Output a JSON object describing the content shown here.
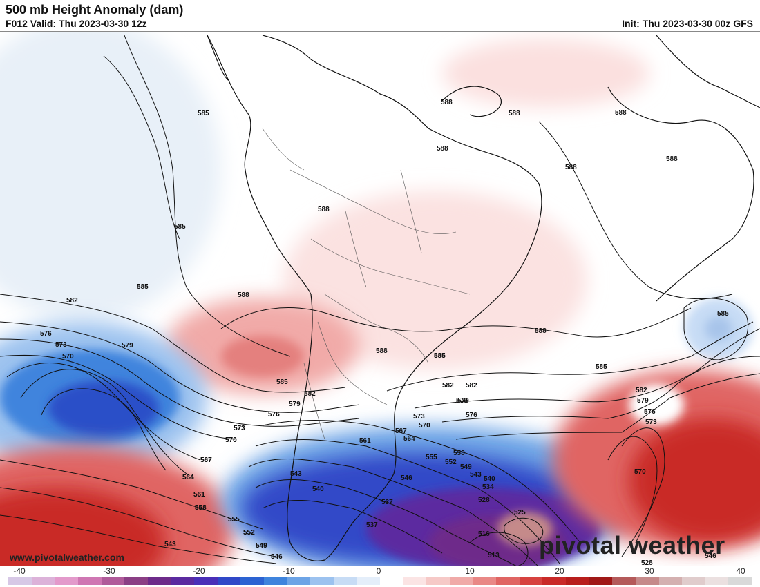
{
  "header": {
    "title": "500 mb Height Anomaly (dam)",
    "valid": "F012 Valid: Thu 2023-03-30 12z",
    "init": "Init: Thu 2023-03-30 00z GFS"
  },
  "footer": {
    "website": "www.pivotalweather.com",
    "brand": "pivotal weather"
  },
  "colorbar": {
    "ticks": [
      "-40",
      "-30",
      "-20",
      "-10",
      "0",
      "10",
      "20",
      "30",
      "40"
    ],
    "colors": [
      "#d7c8e6",
      "#dcb2d9",
      "#e39acb",
      "#cf77b3",
      "#b05b9a",
      "#8b3f85",
      "#6e2b8a",
      "#5b2aa0",
      "#4a2fb8",
      "#3048c8",
      "#2c63d2",
      "#3f84dd",
      "#6da4e6",
      "#9cc2ef",
      "#c7dcf5",
      "#e4eefa",
      "#ffffff",
      "#fbe4e4",
      "#f6c9c7",
      "#f0aaa8",
      "#e98886",
      "#e06563",
      "#d7423f",
      "#c92a28",
      "#b81e1c",
      "#a01817",
      "#b45a5a",
      "#c58a8a",
      "#d4b0b0",
      "#e0cccc",
      "#ebe0e0",
      "#d9d9d9"
    ]
  },
  "contours": {
    "labels": [
      {
        "v": "585"
      },
      {
        "v": "585"
      },
      {
        "v": "585"
      },
      {
        "v": "582"
      },
      {
        "v": "579"
      },
      {
        "v": "576"
      },
      {
        "v": "573"
      },
      {
        "v": "570"
      },
      {
        "v": "588"
      },
      {
        "v": "588"
      },
      {
        "v": "588"
      },
      {
        "v": "588"
      },
      {
        "v": "588"
      },
      {
        "v": "588"
      },
      {
        "v": "588"
      },
      {
        "v": "588"
      },
      {
        "v": "588"
      },
      {
        "v": "588"
      },
      {
        "v": "585"
      },
      {
        "v": "585"
      },
      {
        "v": "582"
      },
      {
        "v": "579"
      },
      {
        "v": "576"
      },
      {
        "v": "585"
      },
      {
        "v": "582"
      },
      {
        "v": "579"
      },
      {
        "v": "576"
      },
      {
        "v": "573"
      },
      {
        "v": "570"
      },
      {
        "v": "567"
      },
      {
        "v": "564"
      },
      {
        "v": "561"
      },
      {
        "v": "558"
      },
      {
        "v": "555"
      },
      {
        "v": "552"
      },
      {
        "v": "549"
      },
      {
        "v": "546"
      },
      {
        "v": "543"
      },
      {
        "v": "540"
      },
      {
        "v": "537"
      },
      {
        "v": "534"
      },
      {
        "v": "528"
      },
      {
        "v": "525"
      },
      {
        "v": "516"
      },
      {
        "v": "513"
      },
      {
        "v": "585"
      },
      {
        "v": "585"
      },
      {
        "v": "582"
      },
      {
        "v": "579"
      },
      {
        "v": "576"
      },
      {
        "v": "573"
      },
      {
        "v": "570"
      },
      {
        "v": "528"
      },
      {
        "v": "573"
      },
      {
        "v": "570"
      },
      {
        "v": "567"
      },
      {
        "v": "564"
      },
      {
        "v": "561"
      },
      {
        "v": "558"
      },
      {
        "v": "555"
      },
      {
        "v": "552"
      },
      {
        "v": "549"
      },
      {
        "v": "546"
      },
      {
        "v": "543"
      },
      {
        "v": "540"
      },
      {
        "v": "543"
      },
      {
        "v": "546"
      },
      {
        "v": "537"
      },
      {
        "v": "582"
      },
      {
        "v": "579"
      },
      {
        "v": "576"
      },
      {
        "v": "573"
      },
      {
        "v": "570"
      },
      {
        "v": "567"
      },
      {
        "v": "564"
      },
      {
        "v": "561"
      },
      {
        "v": "558"
      },
      {
        "v": "555"
      },
      {
        "v": "552"
      },
      {
        "v": "549"
      }
    ]
  }
}
